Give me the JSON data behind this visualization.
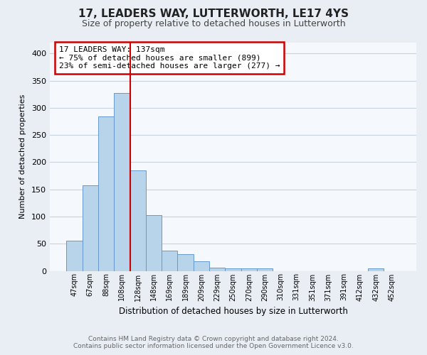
{
  "title": "17, LEADERS WAY, LUTTERWORTH, LE17 4YS",
  "subtitle": "Size of property relative to detached houses in Lutterworth",
  "xlabel": "Distribution of detached houses by size in Lutterworth",
  "ylabel": "Number of detached properties",
  "categories": [
    "47sqm",
    "67sqm",
    "88sqm",
    "108sqm",
    "128sqm",
    "148sqm",
    "169sqm",
    "189sqm",
    "209sqm",
    "229sqm",
    "250sqm",
    "270sqm",
    "290sqm",
    "310sqm",
    "331sqm",
    "351sqm",
    "371sqm",
    "391sqm",
    "412sqm",
    "432sqm",
    "452sqm"
  ],
  "values": [
    55,
    158,
    284,
    327,
    185,
    103,
    37,
    31,
    18,
    6,
    5,
    5,
    5,
    0,
    0,
    0,
    0,
    0,
    0,
    4,
    0
  ],
  "bar_color": "#b8d4ea",
  "bar_edge_color": "#6699cc",
  "vline_color": "#cc0000",
  "annotation_text": "17 LEADERS WAY: 137sqm\n← 75% of detached houses are smaller (899)\n23% of semi-detached houses are larger (277) →",
  "annotation_box_color": "white",
  "annotation_border_color": "#cc0000",
  "ylim": [
    0,
    420
  ],
  "yticks": [
    0,
    50,
    100,
    150,
    200,
    250,
    300,
    350,
    400
  ],
  "footer_line1": "Contains HM Land Registry data © Crown copyright and database right 2024.",
  "footer_line2": "Contains public sector information licensed under the Open Government Licence v3.0.",
  "bg_color": "#e8eef4",
  "plot_bg_color": "#f5f8fc",
  "grid_color": "#c8d4de",
  "title_color": "#222222",
  "subtitle_color": "#444444",
  "footer_color": "#666666"
}
